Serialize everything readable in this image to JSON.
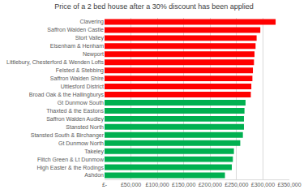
{
  "chart_data": {
    "type": "bar",
    "orientation": "horizontal",
    "title": "Price of a 2 bed house after a 30% discount has been applied",
    "categories": [
      "Clavering",
      "Saffron Walden Castle",
      "Stort Valley",
      "Elsenham & Henham",
      "Newport",
      "Littlebury, Chesterford & Wenden Lofts",
      "Felsted & Stebbing",
      "Saffron Walden Shire",
      "Uttlesford District",
      "Broad Oak & the Hallingburys",
      "Gt Dunmow South",
      "Thaxted & the Eastons",
      "Saffron Walden Audley",
      "Stansted North",
      "Stansted South & Birchanger",
      "Gt Dunmow North",
      "Takeley",
      "Flitch Green & Lt Dunmow",
      "High Easter & the Rodings",
      "Ashdon"
    ],
    "values": [
      324000,
      295000,
      288000,
      286000,
      284000,
      283000,
      281000,
      280000,
      278000,
      277000,
      267000,
      265000,
      264000,
      264000,
      262000,
      257000,
      245000,
      243000,
      241000,
      228000
    ],
    "colors": [
      "#ff0000",
      "#ff0000",
      "#ff0000",
      "#ff0000",
      "#ff0000",
      "#ff0000",
      "#ff0000",
      "#ff0000",
      "#ff0000",
      "#ff0000",
      "#00b050",
      "#00b050",
      "#00b050",
      "#00b050",
      "#00b050",
      "#00b050",
      "#00b050",
      "#00b050",
      "#00b050",
      "#00b050"
    ],
    "xlim": [
      0,
      350000
    ],
    "xticks": [
      {
        "value": 0,
        "label": "£-"
      },
      {
        "value": 50000,
        "label": "£50,000"
      },
      {
        "value": 100000,
        "label": "£100,000"
      },
      {
        "value": 150000,
        "label": "£150,000"
      },
      {
        "value": 200000,
        "label": "£200,000"
      },
      {
        "value": 250000,
        "label": "£250,000"
      },
      {
        "value": 300000,
        "label": "£300,000"
      },
      {
        "value": 350000,
        "label": "£350,000"
      }
    ],
    "grid": true
  }
}
